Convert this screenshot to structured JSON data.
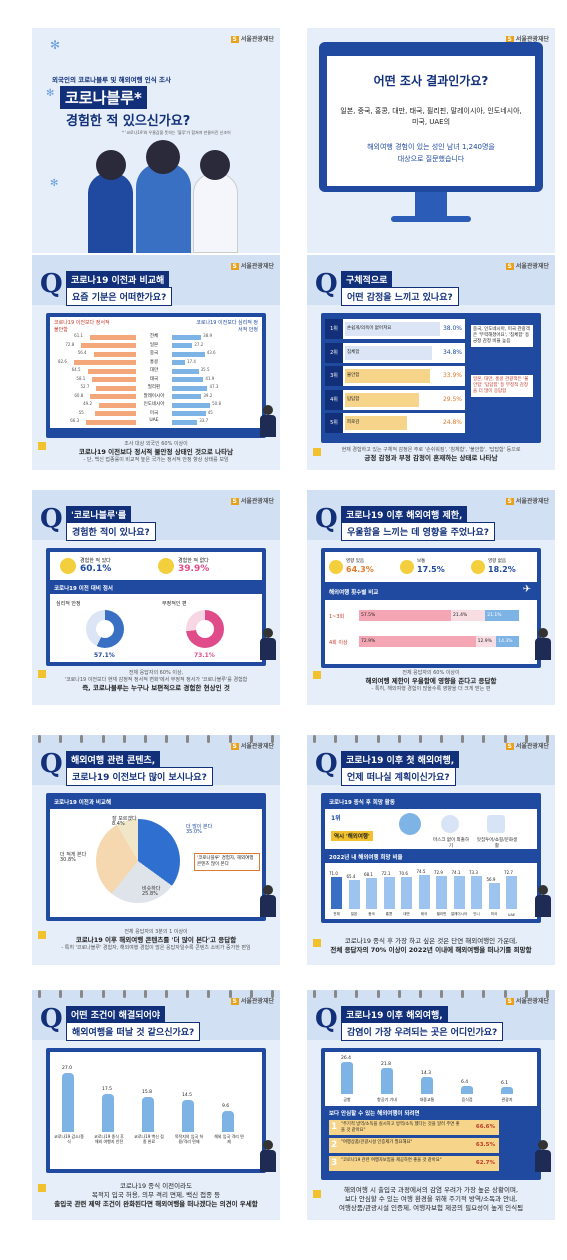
{
  "brand": {
    "logo_text": "서울관광재단",
    "logo_mark": "S",
    "accent": "#12307a",
    "panel_color": "#1f4aa0",
    "yellow": "#f2c12e"
  },
  "card1": {
    "pre_title": "외국인의 코로나블루 및 해외여행 인식 조사",
    "title_badge": "코로나블루*",
    "title_main": "경험한 적 있으신가요?",
    "footnote": "* '코로나19'와 우울감을 뜻하는 '블루'가 합쳐져 만들어진 신조어"
  },
  "card2": {
    "heading": "어떤 조사 결과인가요?",
    "countries": "일본, 중국, 홍콩, 대만, 태국, 필리핀, 말레이시아, 인도네시아, 미국, UAE의",
    "respondents": "해외여행 경험이 있는 성인 남녀 1,240명을",
    "tail": "대상으로 질문했습니다"
  },
  "card3": {
    "q": "Q",
    "line1": "코로나19 이전과 비교해",
    "line2": "요즘 기분은 어떠한가요?",
    "legend_left": "코로나19 이전보다 정서적 불안함",
    "legend_right": "코로나19 이전보다 심리적 정서적 안정",
    "rows": [
      {
        "country": "전체",
        "left": 61.1,
        "right": 38.9
      },
      {
        "country": "일본",
        "left": 72.8,
        "right": 27.2
      },
      {
        "country": "중국",
        "left": 56.4,
        "right": 43.6
      },
      {
        "country": "홍콩",
        "left": 82.6,
        "right": 17.4
      },
      {
        "country": "대만",
        "left": 64.5,
        "right": 35.5
      },
      {
        "country": "태국",
        "left": 58.1,
        "right": 41.9
      },
      {
        "country": "필리핀",
        "left": 52.7,
        "right": 47.3
      },
      {
        "country": "말레이시아",
        "left": 60.8,
        "right": 39.2
      },
      {
        "country": "인도네시아",
        "left": 49.2,
        "right": 50.8
      },
      {
        "country": "미국",
        "left": 55.0,
        "right": 45.0
      },
      {
        "country": "UAE",
        "left": 66.3,
        "right": 33.7
      }
    ],
    "caption1": "조사 대상 외국인 60% 이상이",
    "caption2": "코로나19 이전보다 정서적 불안정 상태인 것으로 나타남",
    "caption3": "- 단, 백신 접종률이 비교적 높은 국가는 정서적 안정 향상 상태를 보임"
  },
  "card4": {
    "q": "Q",
    "line1": "구체적으로",
    "line2": "어떤 감정을 느끼고 있나요?",
    "rows": [
      {
        "rank": "1위",
        "label": "손쉽게/의욕이 없어져요",
        "value": 38.0
      },
      {
        "rank": "2위",
        "label": "침체함",
        "value": 34.8
      },
      {
        "rank": "3위",
        "label": "불안함",
        "value": 33.9
      },
      {
        "rank": "4위",
        "label": "답답함",
        "value": 29.5
      },
      {
        "rank": "5위",
        "label": "피로감",
        "value": 24.8
      }
    ],
    "side1": "중국, 인도네시아, 미국 관광객은 '무력해졌어요', '침체함' 등 긍정 감정 비율 높음",
    "side2": "일본, 대만, 홍콩 관광객은 '불안함' '답답함' 등 부정적 감정을 더 많이 응답함",
    "caption1": "현재 경험하고 있는 구체적 감정은 주로 '손쉬워짐', '침체함', '불안함', '답답함' 등으로",
    "caption2": "긍정 감정과 부정 감정이 혼재하는 상태로 나타남"
  },
  "card5": {
    "q": "Q",
    "line1": "'코로나블루'를",
    "line2": "경험한 적이 있나요?",
    "yes_label": "경험한 적 있다",
    "yes_value": "60.1%",
    "no_label": "경험한 적 없다",
    "no_value": "39.9%",
    "section": "코로나19 이전 대비 정서",
    "donut1_label": "심리적 안정",
    "donut1_value": "57.1%",
    "donut2_label": "부정적인 편",
    "donut2_value": "73.1%",
    "caption1": "전체 응답자의 60% 이상,",
    "caption2": "'코로나19 이전보다 현재 감정적 정서적 변화'에서 부정적 정서가 '코로나블루'를 경험함",
    "caption3": "즉, 코로나블루는 누구나 보편적으로 경험한 현상인 것"
  },
  "card6": {
    "q": "Q",
    "line1": "코로나19 이후 해외여행 제한,",
    "line2": "우울함을 느끼는 데 영향을 주었나요?",
    "stats": [
      {
        "label": "영향 있음",
        "value": "64.3%"
      },
      {
        "label": "보통",
        "value": "17.5%"
      },
      {
        "label": "영향 없음",
        "value": "18.2%"
      }
    ],
    "section": "해외여행 횟수별 비교",
    "rows": [
      {
        "label": "1~3회",
        "a": 57.5,
        "b": 21.4,
        "c": 21.1
      },
      {
        "label": "4회 이상",
        "a": 72.9,
        "b": 12.9,
        "c": 14.3
      }
    ],
    "caption1": "전체 응답자의 60% 이상이",
    "caption2": "해외여행 제한이 우울함에 영향을 준다고 응답함",
    "caption3": "- 특히, 해외여행 경험이 많을수록 영향을 더 크게 받는 편"
  },
  "card7": {
    "q": "Q",
    "line1": "해외여행 관련 콘텐츠,",
    "line2": "코로나19 이전보다 많이 보시나요?",
    "section": "코로나19 이전과 비교해",
    "slices": [
      {
        "label": "더 많이 본다",
        "value": 35.0,
        "color": "#2f6fd0"
      },
      {
        "label": "비슷하다",
        "value": 25.8,
        "color": "#dfe3ea"
      },
      {
        "label": "더 적게 본다",
        "value": 30.8,
        "color": "#f6d8b0"
      },
      {
        "label": "잘 모르겠다",
        "value": 8.4,
        "color": "#f0e7c8"
      }
    ],
    "callout": "'코로나블루' 경험자, 해외여행 콘텐츠 많이 본다",
    "caption1": "전체 응답자의 3분의 1 이상이",
    "caption2": "코로나19 이후 해외여행 콘텐츠를 '더 많이 본다'고 응답함",
    "caption3": "- 특히 '코로나블루' 경험자, 해외여행 경험이 많은 응답자일수록 콘텐츠 소비가 증가한 편임"
  },
  "card8": {
    "q": "Q",
    "line1": "코로나19 이후 첫 해외여행,",
    "line2": "언제 떠나실 계획이신가요?",
    "section": "코로나19 종식 후 희망 활동",
    "first": "1위",
    "first_label": "역시 '해외여행'",
    "item2": "마스크 없이 외출하기",
    "item3": "맛집투어/쇼핑/문화생활",
    "bar_title": "2022년 내 해외여행 희망 비율",
    "bars": [
      {
        "c": "전체",
        "v": 71.0
      },
      {
        "c": "일본",
        "v": 65.4
      },
      {
        "c": "중국",
        "v": 68.1
      },
      {
        "c": "홍콩",
        "v": 72.1
      },
      {
        "c": "대만",
        "v": 70.6
      },
      {
        "c": "태국",
        "v": 74.5
      },
      {
        "c": "필리핀",
        "v": 72.9
      },
      {
        "c": "말레이시아",
        "v": 74.1
      },
      {
        "c": "인니",
        "v": 73.3
      },
      {
        "c": "미국",
        "v": 56.9
      },
      {
        "c": "UAE",
        "v": 72.7
      }
    ],
    "caption1": "코로나19 종식 후 가장 하고 싶은 것은 단연 해외여행인 가운데,",
    "caption2": "전체 응답자의 70% 이상이 2022년 이내에 해외여행을 떠나기를 희망함"
  },
  "card9": {
    "q": "Q",
    "line1": "어떤 조건이 해결되어야",
    "line2": "해외여행을 떠날 것 같으신가요?",
    "bars": [
      {
        "v": 27.0,
        "l": "코로나19 감소/종식"
      },
      {
        "v": 17.5,
        "l": "코로나19 종식 후 해외 여행지 안전"
      },
      {
        "v": 15.8,
        "l": "코로나19 백신 접종 완료"
      },
      {
        "v": 14.5,
        "l": "목적지의 입국 허용/격리 면제"
      },
      {
        "v": 9.6,
        "l": "해외 입국 격리 면제"
      }
    ],
    "caption1": "코로나19 종식 이전이라도",
    "caption2": "목적지 입국 허용, 의무 격리 면제, 백신 접종 등",
    "caption3": "출입국 관련 제약 조건이 완화된다면 해외여행을 떠나겠다는 의견이 우세함"
  },
  "card10": {
    "q": "Q",
    "line1": "코로나19 이후 해외여행,",
    "line2": "감염이 가장 우려되는 곳은 어디인가요?",
    "bars": [
      {
        "v": 26.4,
        "l": "공항"
      },
      {
        "v": 21.8,
        "l": "항공기 기내"
      },
      {
        "v": 14.3,
        "l": "대중교통"
      },
      {
        "v": 6.4,
        "l": "음식점"
      },
      {
        "v": 6.1,
        "l": "관광지"
      }
    ],
    "section": "보다 안심할 수 있는 해외여행이 되려면",
    "items": [
      {
        "n": "1",
        "t": "\"주기적 방역/소독을 실시하고 방역/소독 했다는 것을 알려 주면 좋을 것 같아요\"",
        "v": "66.6%"
      },
      {
        "n": "2",
        "t": "\"여행상품/관광시설 인증제가 필요해요\"",
        "v": "63.5%"
      },
      {
        "n": "3",
        "t": "\"코로나19 관련 여행자보험을 제공하면 좋을 것 같아요\"",
        "v": "62.7%"
      }
    ],
    "caption1": "해외여행 시 출입국 과정에서의 감염 우려가 가장 높은 상황이며,",
    "caption2": "보다 안심할 수 있는 여행 환경을 위해 주기적 방역/소독과 안내,",
    "caption3": "여행상품/관광시설 인증제, 여행자보험 제공의 필요성이 높게 인식됨"
  }
}
